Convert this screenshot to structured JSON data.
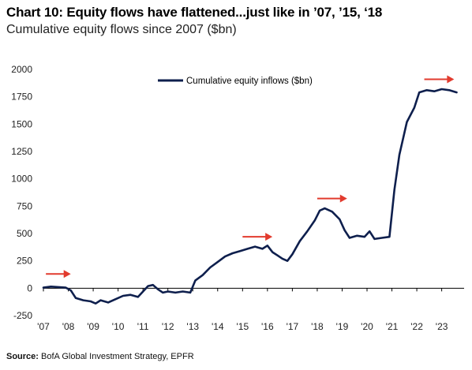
{
  "header": {
    "title": "Chart 10: Equity flows have flattened...just like in ’07, ’15, ‘18",
    "subtitle": "Cumulative equity flows since 2007 ($bn)"
  },
  "source": {
    "label": "Source:",
    "text": "BofA Global Investment Strategy, EPFR"
  },
  "colors": {
    "line": "#0e1f4d",
    "arrow": "#e23b2e",
    "axis": "#000000"
  },
  "chart_data": {
    "type": "line",
    "title": "",
    "xlabel": "",
    "ylabel": "",
    "xlim": [
      2007.0,
      2023.9
    ],
    "ylim": [
      -250,
      2000
    ],
    "y_ticks": [
      -250,
      0,
      250,
      500,
      750,
      1000,
      1250,
      1500,
      1750,
      2000
    ],
    "y_tick_labels": [
      "-250",
      "0",
      "250",
      "500",
      "750",
      "1000",
      "1250",
      "1500",
      "1750",
      "2000"
    ],
    "x_ticks": [
      2007,
      2008,
      2009,
      2010,
      2011,
      2012,
      2013,
      2014,
      2015,
      2016,
      2017,
      2018,
      2019,
      2020,
      2021,
      2022,
      2023
    ],
    "x_tick_labels": [
      "'07",
      "'08",
      "'09",
      "'10",
      "'11",
      "'12",
      "'13",
      "'14",
      "'15",
      "'16",
      "'17",
      "'18",
      "'19",
      "'20",
      "'21",
      "'22",
      "'23"
    ],
    "grid": false,
    "legend_position": "top-center",
    "series": [
      {
        "name": "Cumulative equity inflows ($bn)",
        "x": [
          2007.0,
          2007.3,
          2007.6,
          2007.9,
          2008.1,
          2008.3,
          2008.6,
          2008.9,
          2009.1,
          2009.3,
          2009.6,
          2009.9,
          2010.2,
          2010.5,
          2010.8,
          2011.0,
          2011.2,
          2011.4,
          2011.6,
          2011.8,
          2012.0,
          2012.3,
          2012.6,
          2012.9,
          2013.1,
          2013.4,
          2013.7,
          2014.0,
          2014.3,
          2014.6,
          2014.9,
          2015.2,
          2015.5,
          2015.8,
          2016.0,
          2016.2,
          2016.4,
          2016.6,
          2016.8,
          2017.0,
          2017.3,
          2017.6,
          2017.9,
          2018.1,
          2018.3,
          2018.6,
          2018.9,
          2019.1,
          2019.3,
          2019.6,
          2019.9,
          2020.1,
          2020.3,
          2020.6,
          2020.9,
          2021.1,
          2021.3,
          2021.6,
          2021.9,
          2022.1,
          2022.4,
          2022.7,
          2023.0,
          2023.3,
          2023.6
        ],
        "y": [
          5,
          15,
          10,
          5,
          -20,
          -90,
          -110,
          -120,
          -140,
          -110,
          -130,
          -100,
          -70,
          -60,
          -80,
          -30,
          20,
          30,
          -10,
          -40,
          -30,
          -40,
          -30,
          -40,
          70,
          120,
          190,
          240,
          290,
          320,
          340,
          360,
          380,
          360,
          390,
          330,
          300,
          270,
          250,
          310,
          430,
          520,
          620,
          710,
          730,
          700,
          630,
          530,
          460,
          480,
          470,
          520,
          450,
          460,
          470,
          900,
          1220,
          1520,
          1650,
          1790,
          1810,
          1800,
          1820,
          1810,
          1790
        ]
      }
    ],
    "annotations": [
      {
        "type": "arrow",
        "x_start": 2007.1,
        "x_end": 2008.1,
        "y": 130
      },
      {
        "type": "arrow",
        "x_start": 2015.0,
        "x_end": 2016.2,
        "y": 470
      },
      {
        "type": "arrow",
        "x_start": 2018.0,
        "x_end": 2019.2,
        "y": 820
      },
      {
        "type": "arrow",
        "x_start": 2022.3,
        "x_end": 2023.5,
        "y": 1910
      }
    ]
  }
}
